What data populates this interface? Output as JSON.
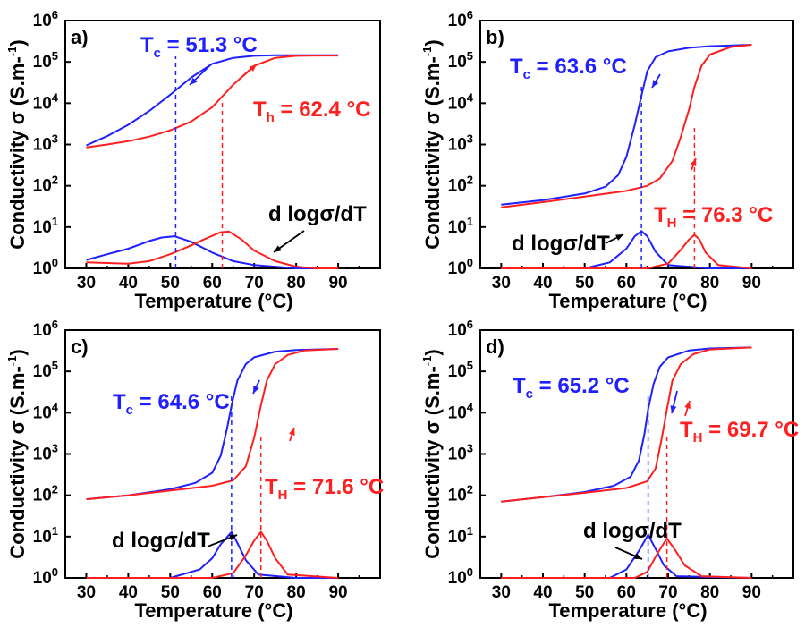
{
  "colors": {
    "cooling": "#1f1fff",
    "heating": "#ff1f1f",
    "axis": "#000000"
  },
  "chart_data": [
    {
      "type": "line",
      "panel_label": "a)",
      "xlabel": "Temperature (°C)",
      "ylabel": "Conductivity σ (S.m-1)",
      "xlim": [
        25,
        100
      ],
      "ylim": [
        1,
        1000000
      ],
      "yscale": "log",
      "x_ticks": [
        30,
        40,
        50,
        60,
        70,
        80,
        90
      ],
      "y_ticks": [
        "100",
        "101",
        "102",
        "103",
        "104",
        "105",
        "106"
      ],
      "cooling": {
        "label": "T",
        "sub": "c",
        "value": " = 51.3 °C",
        "tc": 51.3
      },
      "heating": {
        "label": "T",
        "sub": "h",
        "value": " = 62.4 °C",
        "tc": 62.4
      },
      "derivative_label": "d logσ/dT",
      "series": [
        {
          "color": "cooling",
          "x": [
            30,
            35,
            40,
            45,
            50,
            55,
            60,
            65,
            70,
            75,
            80,
            85,
            90
          ],
          "y": [
            950,
            1600,
            3000,
            6500,
            16000,
            42000,
            90000,
            125000,
            140000,
            145000,
            145000,
            145000,
            145000
          ]
        },
        {
          "color": "heating",
          "x": [
            30,
            35,
            40,
            45,
            50,
            55,
            60,
            65,
            70,
            75,
            80,
            85,
            90
          ],
          "y": [
            850,
            1000,
            1200,
            1550,
            2200,
            3600,
            8000,
            28000,
            80000,
            125000,
            140000,
            142000,
            142000
          ]
        },
        {
          "color": "cooling",
          "x": [
            30,
            35,
            40,
            45,
            48,
            51,
            55,
            60,
            65,
            70,
            75,
            80,
            90
          ],
          "y": [
            1.6,
            2.2,
            3.0,
            4.6,
            5.6,
            6.0,
            4.4,
            2.4,
            1.5,
            1.2,
            1.1,
            1.0,
            1.0
          ]
        },
        {
          "color": "heating",
          "x": [
            30,
            40,
            45,
            50,
            55,
            58,
            62,
            64,
            67,
            70,
            75,
            80,
            85,
            90
          ],
          "y": [
            1.4,
            1.3,
            1.5,
            2.2,
            3.6,
            5.0,
            7.5,
            7.8,
            5.0,
            2.7,
            1.5,
            1.1,
            1.0,
            1.0
          ]
        }
      ]
    },
    {
      "type": "line",
      "panel_label": "b)",
      "xlabel": "Temperature (°C)",
      "ylabel": "Conductivity σ (S.m-1)",
      "xlim": [
        25,
        100
      ],
      "ylim": [
        1,
        1000000
      ],
      "yscale": "log",
      "x_ticks": [
        30,
        40,
        50,
        60,
        70,
        80,
        90
      ],
      "y_ticks": [
        "100",
        "101",
        "102",
        "103",
        "104",
        "105",
        "106"
      ],
      "cooling": {
        "label": "T",
        "sub": "c",
        "value": " = 63.6 °C",
        "tc": 63.6
      },
      "heating": {
        "label": "T",
        "sub": "H",
        "value": " = 76.3 °C",
        "tc": 76.3
      },
      "derivative_label": "d logσ/dT",
      "series": [
        {
          "color": "cooling",
          "x": [
            30,
            40,
            50,
            55,
            58,
            60,
            62,
            63.6,
            65,
            67,
            70,
            75,
            80,
            90
          ],
          "y": [
            35,
            45,
            65,
            95,
            180,
            500,
            3000,
            15000,
            60000,
            130000,
            180000,
            220000,
            240000,
            260000
          ]
        },
        {
          "color": "heating",
          "x": [
            30,
            40,
            50,
            60,
            65,
            68,
            71,
            73,
            75,
            76.3,
            78,
            80,
            85,
            90
          ],
          "y": [
            30,
            40,
            55,
            75,
            100,
            150,
            400,
            1500,
            7000,
            25000,
            80000,
            150000,
            230000,
            260000
          ]
        },
        {
          "color": "cooling",
          "x": [
            30,
            50,
            56,
            60,
            62,
            63.6,
            65,
            67,
            70,
            80,
            90
          ],
          "y": [
            1.0,
            1.0,
            1.4,
            3.0,
            6.0,
            8.0,
            6.0,
            2.5,
            1.2,
            1.0,
            1.0
          ]
        },
        {
          "color": "heating",
          "x": [
            30,
            65,
            70,
            73,
            75,
            76.3,
            77.5,
            79,
            82,
            90
          ],
          "y": [
            1.0,
            1.0,
            1.3,
            2.8,
            5.0,
            6.5,
            5.0,
            2.4,
            1.2,
            1.0
          ]
        }
      ]
    },
    {
      "type": "line",
      "panel_label": "c)",
      "xlabel": "Temperature (°C)",
      "ylabel": "Conductivity σ (S.m-1)",
      "xlim": [
        25,
        100
      ],
      "ylim": [
        1,
        1000000
      ],
      "yscale": "log",
      "x_ticks": [
        30,
        40,
        50,
        60,
        70,
        80,
        90
      ],
      "y_ticks": [
        "100",
        "101",
        "102",
        "103",
        "104",
        "105",
        "106"
      ],
      "cooling": {
        "label": "T",
        "sub": "c",
        "value": " = 64.6 °C",
        "tc": 64.6
      },
      "heating": {
        "label": "T",
        "sub": "H",
        "value": " = 71.6 °C",
        "tc": 71.6
      },
      "derivative_label": "d logσ/dT",
      "series": [
        {
          "color": "cooling",
          "x": [
            30,
            40,
            50,
            56,
            60,
            62,
            63.5,
            64.6,
            66,
            68,
            70,
            75,
            80,
            90
          ],
          "y": [
            80,
            100,
            140,
            200,
            350,
            900,
            4000,
            15000,
            60000,
            150000,
            220000,
            300000,
            330000,
            350000
          ]
        },
        {
          "color": "heating",
          "x": [
            30,
            40,
            50,
            60,
            65,
            68,
            70,
            71.6,
            73,
            75,
            78,
            82,
            90
          ],
          "y": [
            80,
            100,
            130,
            170,
            230,
            500,
            2500,
            15000,
            60000,
            150000,
            250000,
            320000,
            350000
          ]
        },
        {
          "color": "cooling",
          "x": [
            30,
            50,
            57,
            60,
            62,
            64.6,
            66,
            68,
            71,
            80,
            90
          ],
          "y": [
            1.0,
            1.0,
            1.6,
            3.0,
            6.5,
            13,
            7.0,
            2.7,
            1.2,
            1.0,
            1.0
          ]
        },
        {
          "color": "heating",
          "x": [
            30,
            60,
            65,
            68,
            70,
            71.6,
            73,
            75,
            78,
            90
          ],
          "y": [
            1.0,
            1.0,
            1.3,
            3.5,
            8.0,
            13,
            8.0,
            3.0,
            1.2,
            1.0
          ]
        }
      ]
    },
    {
      "type": "line",
      "panel_label": "d)",
      "xlabel": "Temperature (°C)",
      "ylabel": "Conductivity σ (S.m-1)",
      "xlim": [
        25,
        100
      ],
      "ylim": [
        1,
        1000000
      ],
      "yscale": "log",
      "x_ticks": [
        30,
        40,
        50,
        60,
        70,
        80,
        90
      ],
      "y_ticks": [
        "100",
        "101",
        "102",
        "103",
        "104",
        "105",
        "106"
      ],
      "cooling": {
        "label": "T",
        "sub": "c",
        "value": " = 65.2 °C",
        "tc": 65.2
      },
      "heating": {
        "label": "T",
        "sub": "H",
        "value": " = 69.7 °C",
        "tc": 69.7
      },
      "derivative_label": "d logσ/dT",
      "series": [
        {
          "color": "cooling",
          "x": [
            30,
            40,
            50,
            57,
            61,
            63,
            64.3,
            65.2,
            66.5,
            68,
            70,
            75,
            80,
            90
          ],
          "y": [
            70,
            90,
            120,
            170,
            280,
            700,
            3000,
            12000,
            50000,
            130000,
            220000,
            320000,
            360000,
            380000
          ]
        },
        {
          "color": "heating",
          "x": [
            30,
            40,
            50,
            60,
            65,
            67,
            68.5,
            69.7,
            71,
            73,
            76,
            80,
            90
          ],
          "y": [
            70,
            90,
            115,
            150,
            220,
            450,
            2500,
            12000,
            60000,
            150000,
            260000,
            340000,
            380000
          ]
        },
        {
          "color": "cooling",
          "x": [
            30,
            56,
            60,
            63,
            65.2,
            67,
            69,
            72,
            90
          ],
          "y": [
            1.0,
            1.0,
            1.6,
            4.5,
            11,
            5.0,
            2.0,
            1.1,
            1.0
          ]
        },
        {
          "color": "heating",
          "x": [
            30,
            62,
            65,
            67.5,
            69.7,
            71.5,
            74,
            78,
            90
          ],
          "y": [
            1.0,
            1.0,
            1.4,
            4.0,
            9.0,
            5.0,
            2.0,
            1.1,
            1.0
          ]
        }
      ]
    }
  ]
}
